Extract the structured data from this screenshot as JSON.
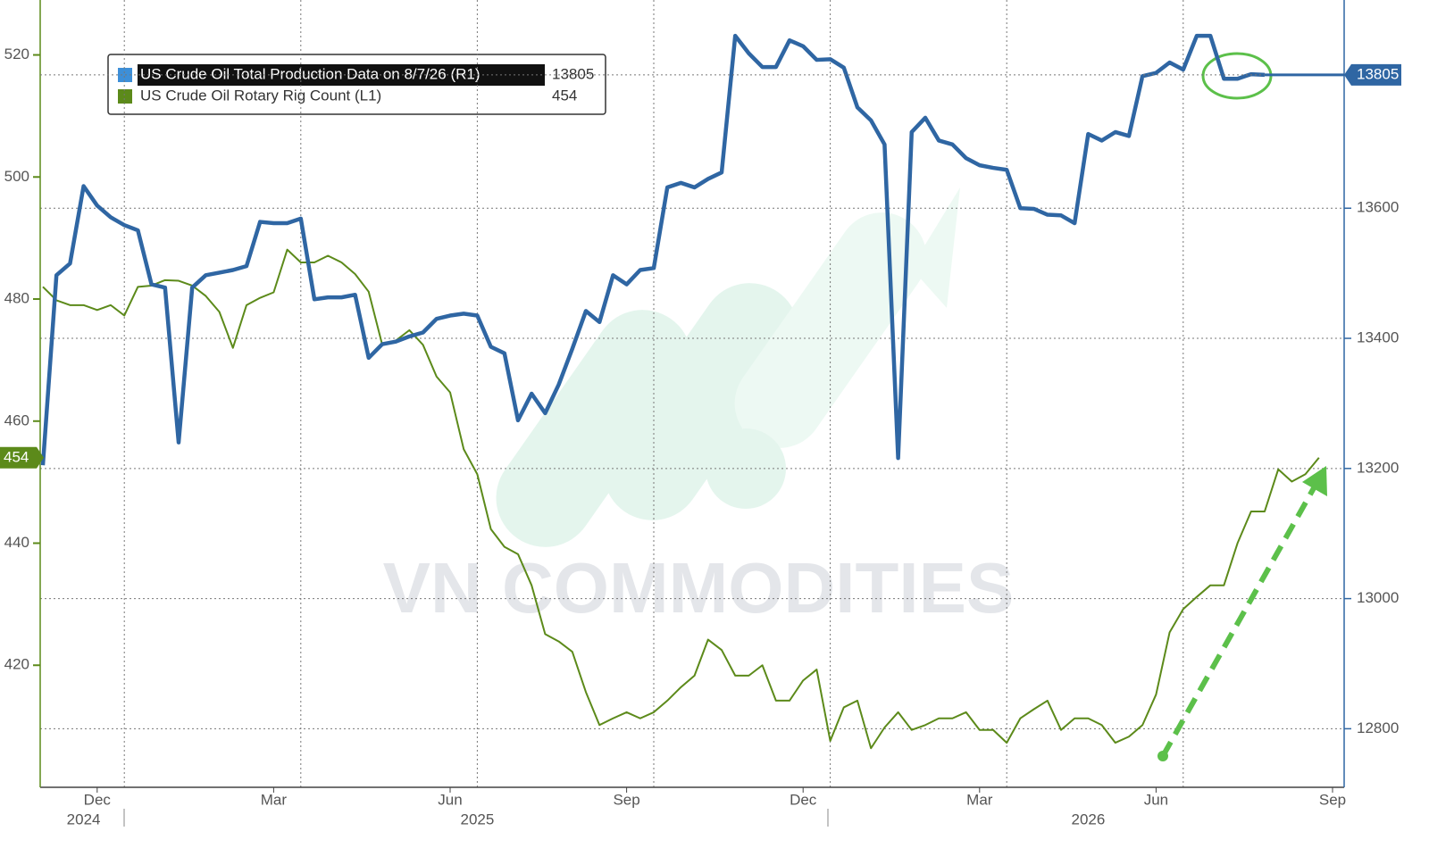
{
  "chart_data": {
    "type": "line",
    "watermark": "VN COMMODITIES",
    "categories": [
      null,
      null,
      null,
      null,
      "Dec",
      null,
      null,
      null,
      null,
      null,
      null,
      null,
      null,
      null,
      null,
      null,
      null,
      "Mar",
      null,
      null,
      null,
      null,
      null,
      null,
      null,
      null,
      null,
      null,
      null,
      null,
      "Jun",
      null,
      null,
      null,
      null,
      null,
      null,
      null,
      null,
      null,
      null,
      null,
      null,
      "Sep",
      null,
      null,
      null,
      null,
      null,
      null,
      null,
      null,
      null,
      null,
      null,
      null,
      "Dec",
      null,
      null,
      null,
      null,
      null,
      null,
      null,
      null,
      null,
      null,
      null,
      null,
      "Mar",
      null,
      null,
      null,
      null,
      null,
      null,
      null,
      null,
      null,
      null,
      null,
      null,
      "Jun",
      null,
      null,
      null,
      null,
      null,
      null,
      null,
      null,
      null,
      null,
      null,
      null,
      "Sep"
    ],
    "category_years": [
      null,
      null,
      null,
      "2024",
      null,
      null,
      null,
      null,
      null,
      null,
      null,
      null,
      null,
      null,
      null,
      null,
      null,
      null,
      null,
      null,
      null,
      null,
      null,
      null,
      null,
      null,
      null,
      null,
      null,
      null,
      null,
      null,
      "2025",
      null,
      null,
      null,
      null,
      null,
      null,
      null,
      null,
      null,
      null,
      null,
      null,
      null,
      null,
      null,
      null,
      null,
      null,
      null,
      null,
      null,
      null,
      null,
      null,
      null,
      null,
      null,
      null,
      null,
      null,
      null,
      null,
      null,
      null,
      null,
      null,
      null,
      null,
      null,
      null,
      null,
      null,
      null,
      null,
      "2026",
      null,
      null,
      null,
      null,
      null,
      null,
      null,
      null,
      null,
      null,
      null,
      null,
      null,
      null,
      null,
      null,
      null,
      null
    ],
    "series": [
      {
        "name": "US Crude Oil Total Production Data on 8/7/26 (R1)",
        "color": "#2f66a3",
        "axis": "y2",
        "last_value": 13805,
        "values": [
          13205,
          13497,
          13515,
          13634,
          13604,
          13586,
          13574,
          13566,
          13483,
          13478,
          13240,
          13478,
          13497,
          13501,
          13505,
          13511,
          13579,
          13577,
          13577,
          13584,
          13460,
          13463,
          13463,
          13467,
          13370,
          13391,
          13395,
          13403,
          13409,
          13430,
          13435,
          13438,
          13435,
          13387,
          13377,
          13274,
          13315,
          13285,
          13329,
          13384,
          13442,
          13425,
          13497,
          13483,
          13505,
          13508,
          13632,
          13639,
          13632,
          13645,
          13655,
          13865,
          13838,
          13817,
          13817,
          13858,
          13849,
          13828,
          13829,
          13816,
          13755,
          13735,
          13698,
          13216,
          13717,
          13739,
          13704,
          13698,
          13677,
          13666,
          13662,
          13659,
          13600,
          13599,
          13590,
          13589,
          13577,
          13714,
          13704,
          13717,
          13711,
          13803,
          13808,
          13824,
          13813,
          13865,
          13865,
          13799,
          13799,
          13806,
          13805,
          null,
          null,
          null,
          null,
          null
        ]
      },
      {
        "name": "US Crude Oil Rotary Rig Count (L1)",
        "color": "#5c8a1a",
        "last_value": 454,
        "values": [
          482,
          479.8,
          479,
          479,
          478.2,
          479,
          477.3,
          482,
          482.2,
          483.1,
          483,
          482.2,
          480.5,
          477.9,
          472,
          479,
          480.2,
          481.1,
          488.1,
          486,
          486,
          487.1,
          486,
          484.1,
          481.2,
          472.5,
          473.2,
          474.9,
          472.5,
          467.3,
          464.7,
          455.4,
          451.3,
          442.3,
          439.4,
          438.2,
          433.1,
          425.1,
          423.9,
          422.2,
          415.6,
          410.2,
          411.3,
          412.3,
          411.3,
          412.3,
          414.2,
          416.4,
          418.3,
          424.2,
          422.5,
          418.3,
          418.3,
          420,
          414.2,
          414.2,
          417.5,
          419.3,
          407.6,
          413.1,
          414.2,
          406.4,
          409.8,
          412.3,
          409.4,
          410.2,
          411.3,
          411.3,
          412.3,
          409.4,
          409.4,
          407.3,
          411.3,
          412.8,
          414.2,
          409.4,
          411.3,
          411.3,
          410.2,
          407.3,
          408.3,
          410.2,
          415.2,
          425.4,
          429.2,
          431.2,
          433.1,
          433.1,
          440,
          445.2,
          445.2,
          452.1,
          450.1,
          451.3,
          454,
          null
        ]
      }
    ],
    "ylim": [
      400,
      529
    ],
    "yticks": [
      420,
      440,
      460,
      480,
      500,
      520
    ],
    "y2lim": [
      12710,
      13920
    ],
    "y2ticks": [
      12800,
      13000,
      13200,
      13400,
      13600
    ],
    "grid": true
  }
}
